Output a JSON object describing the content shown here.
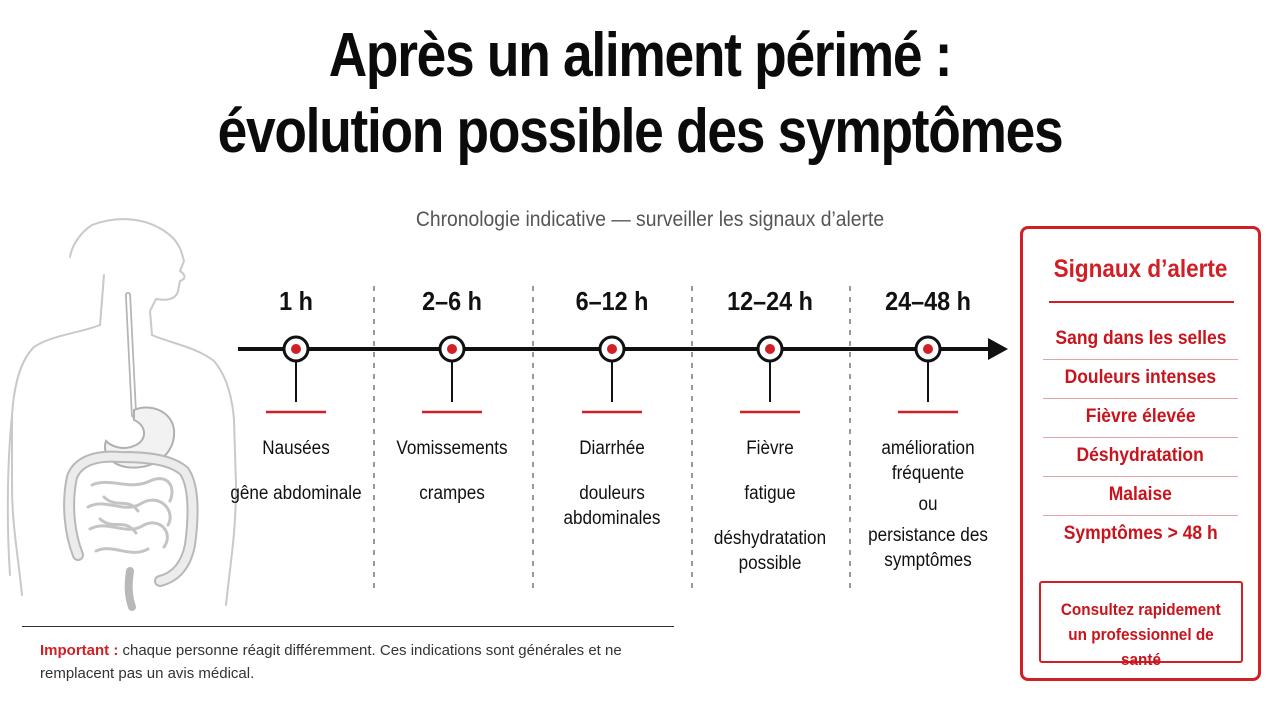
{
  "title": {
    "line1": "Après un aliment périmé :",
    "line2": "évolution possible des symptômes"
  },
  "subtitle": "Chronologie indicative — surveiller les signaux d’alerte",
  "colors": {
    "accent": "#d11f26",
    "text": "#111111",
    "muted": "#555555"
  },
  "illustration": {
    "icon": "human-torso-digestive-system-icon"
  },
  "timeline": {
    "phases": [
      {
        "time": "1 h",
        "symptoms": [
          "Nausées",
          "gêne abdominale"
        ]
      },
      {
        "time": "2–6 h",
        "symptoms": [
          "Vomissements",
          "crampes"
        ]
      },
      {
        "time": "6–12 h",
        "symptoms": [
          "Diarrhée",
          "douleurs abdominales"
        ]
      },
      {
        "time": "12–24 h",
        "symptoms": [
          "Fièvre",
          "fatigue",
          "déshydratation possible"
        ]
      },
      {
        "time": "24–48 h",
        "symptoms": [
          "amélioration fréquente",
          "ou",
          "persistance des symptômes"
        ]
      }
    ]
  },
  "alerts": {
    "title": "Signaux d’alerte",
    "items": [
      "Sang dans les selles",
      "Douleurs intenses",
      "Fièvre élevée",
      "Déshydratation",
      "Malaise",
      "Symptômes > 48 h"
    ],
    "consult": {
      "line1": "Consultez rapidement",
      "line2": "un professionnel de santé"
    }
  },
  "footnote": {
    "label": "Important :",
    "text": "chaque personne réagit différemment. Ces indications sont générales et ne remplacent pas un avis médical."
  }
}
